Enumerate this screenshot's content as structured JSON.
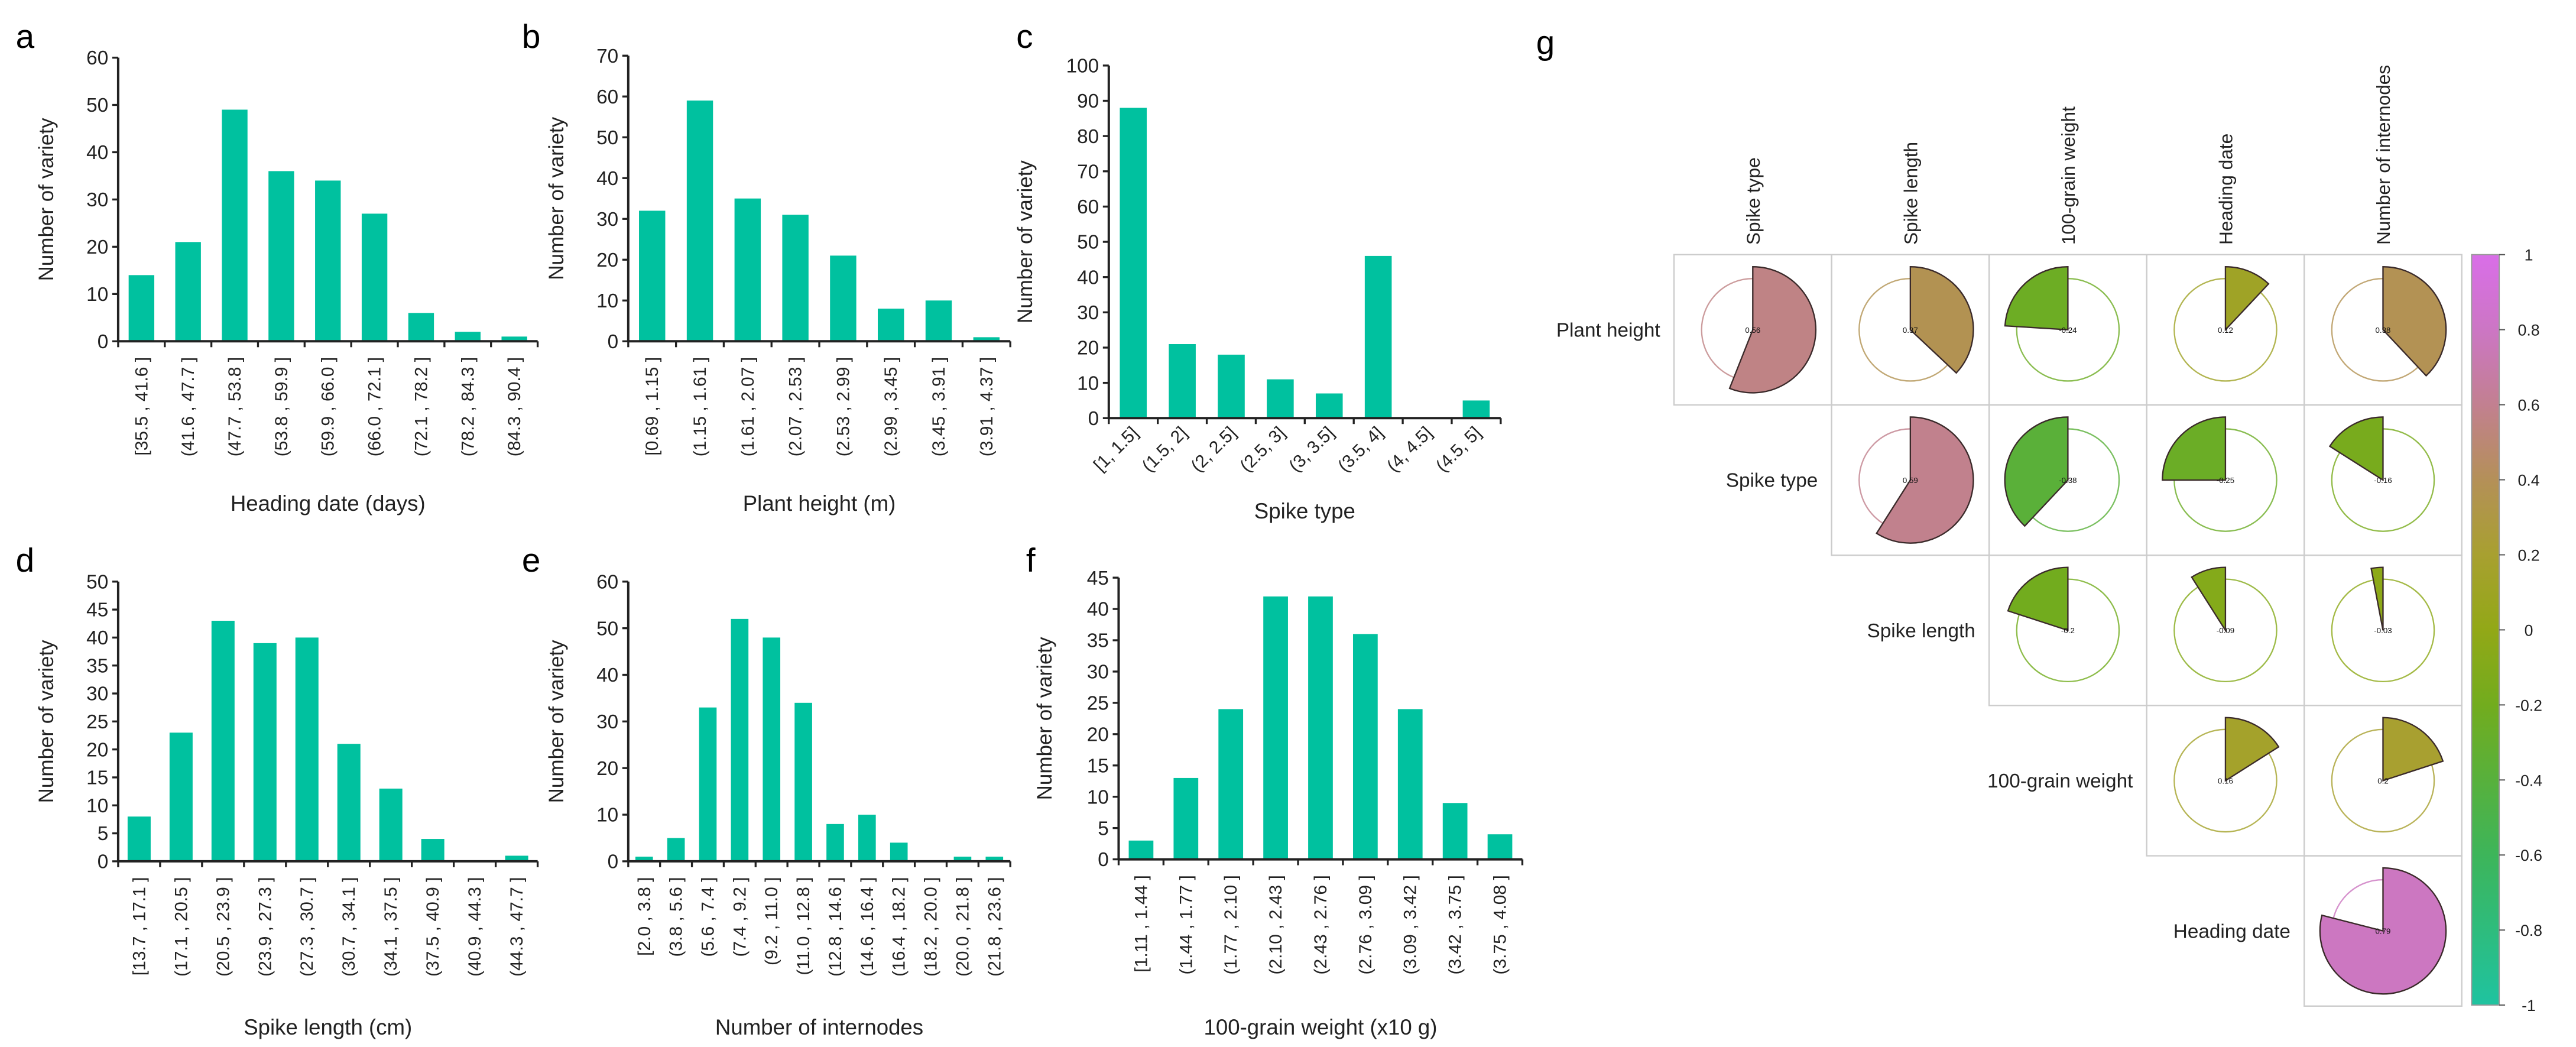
{
  "colors": {
    "bar": "#00C19F",
    "axis": "#222222",
    "grid_border": "#cccccc"
  },
  "chart_data": [
    {
      "panel": "a",
      "type": "bar",
      "xlabel": "Heading date (days)",
      "ylabel": "Number of variety",
      "ylim": [
        0,
        60
      ],
      "yticks": [
        0,
        10,
        20,
        30,
        40,
        50,
        60
      ],
      "categories": [
        "[35.5 , 41.6 ]",
        "(41.6 , 47.7 ]",
        "(47.7 , 53.8 ]",
        "(53.8 , 59.9 ]",
        "(59.9 , 66.0 ]",
        "(66.0 , 72.1 ]",
        "(72.1 , 78.2 ]",
        "(78.2 , 84.3 ]",
        "(84.3 , 90.4 ]"
      ],
      "values": [
        14,
        21,
        49,
        36,
        34,
        27,
        6,
        2,
        1
      ]
    },
    {
      "panel": "b",
      "type": "bar",
      "xlabel": "Plant height (m)",
      "ylabel": "Number of variety",
      "ylim": [
        0,
        70
      ],
      "yticks": [
        0,
        10,
        20,
        30,
        40,
        50,
        60,
        70
      ],
      "categories": [
        "[0.69 , 1.15 ]",
        "(1.15 , 1.61 ]",
        "(1.61 , 2.07 ]",
        "(2.07 , 2.53 ]",
        "(2.53 , 2.99 ]",
        "(2.99 , 3.45 ]",
        "(3.45 , 3.91 ]",
        "(3.91 , 4.37 ]"
      ],
      "values": [
        32,
        59,
        35,
        31,
        21,
        8,
        10,
        1
      ]
    },
    {
      "panel": "c",
      "type": "bar",
      "xlabel": "Spike type",
      "ylabel": "Number of variety",
      "ylim": [
        0,
        100
      ],
      "yticks": [
        0,
        10,
        20,
        30,
        40,
        50,
        60,
        70,
        80,
        90,
        100
      ],
      "categories": [
        "[1, 1.5]",
        "(1.5, 2]",
        "(2, 2.5]",
        "(2.5, 3]",
        "(3, 3.5]",
        "(3.5, 4]",
        "(4, 4.5]",
        "(4.5, 5]"
      ],
      "values": [
        88,
        21,
        18,
        11,
        7,
        46,
        0,
        5
      ]
    },
    {
      "panel": "d",
      "type": "bar",
      "xlabel": "Spike length (cm)",
      "ylabel": "Number of variety",
      "ylim": [
        0,
        50
      ],
      "yticks": [
        0,
        5,
        10,
        15,
        20,
        25,
        30,
        35,
        40,
        45,
        50
      ],
      "categories": [
        "[13.7 , 17.1 ]",
        "(17.1 , 20.5 ]",
        "(20.5 , 23.9 ]",
        "(23.9 , 27.3 ]",
        "(27.3 , 30.7 ]",
        "(30.7 , 34.1 ]",
        "(34.1 , 37.5 ]",
        "(37.5 , 40.9 ]",
        "(40.9 , 44.3 ]",
        "(44.3 , 47.7 ]"
      ],
      "values": [
        8,
        23,
        43,
        39,
        40,
        21,
        13,
        4,
        0,
        1
      ]
    },
    {
      "panel": "e",
      "type": "bar",
      "xlabel": "Number of internodes",
      "ylabel": "Number of variety",
      "ylim": [
        0,
        60
      ],
      "yticks": [
        0,
        10,
        20,
        30,
        40,
        50,
        60
      ],
      "categories": [
        "[2.0 , 3.8 ]",
        "(3.8 , 5.6 ]",
        "(5.6 , 7.4 ]",
        "(7.4 , 9.2 ]",
        "(9.2 , 11.0 ]",
        "(11.0 , 12.8 ]",
        "(12.8 , 14.6 ]",
        "(14.6 , 16.4 ]",
        "(16.4 , 18.2 ]",
        "(18.2 , 20.0 ]",
        "(20.0 , 21.8 ]",
        "(21.8 , 23.6 ]"
      ],
      "values": [
        1,
        5,
        33,
        52,
        48,
        34,
        8,
        10,
        4,
        0,
        1,
        1
      ]
    },
    {
      "panel": "f",
      "type": "bar",
      "xlabel": "100-grain weight (x10 g)",
      "ylabel": "Number of variety",
      "ylim": [
        0,
        45
      ],
      "yticks": [
        0,
        5,
        10,
        15,
        20,
        25,
        30,
        35,
        40,
        45
      ],
      "categories": [
        "[1.11 , 1.44 ]",
        "(1.44 , 1.77 ]",
        "(1.77 , 2.10 ]",
        "(2.10 , 2.43 ]",
        "(2.43 , 2.76 ]",
        "(2.76 , 3.09 ]",
        "(3.09 , 3.42 ]",
        "(3.42 , 3.75 ]",
        "(3.75 , 4.08 ]"
      ],
      "values": [
        3,
        13,
        24,
        42,
        42,
        36,
        24,
        9,
        4
      ]
    },
    {
      "panel": "g",
      "type": "heatmap",
      "title": "",
      "row_labels": [
        "Plant height",
        "Spike type",
        "Spike length",
        "100-grain weight",
        "Heading date"
      ],
      "col_labels": [
        "Spike type",
        "Spike length",
        "100-grain weight",
        "Heading date",
        "Number of internodes"
      ],
      "values": [
        [
          0.56,
          0.37,
          -0.24,
          0.12,
          0.38
        ],
        [
          null,
          0.59,
          -0.38,
          -0.25,
          -0.16
        ],
        [
          null,
          null,
          -0.2,
          -0.09,
          -0.03
        ],
        [
          null,
          null,
          null,
          0.16,
          0.2
        ],
        [
          null,
          null,
          null,
          null,
          0.79
        ]
      ],
      "colorbar": {
        "range": [
          -1,
          1
        ],
        "ticks": [
          "1",
          "0.8",
          "0.6",
          "0.4",
          "0.2",
          "0",
          "-0.2",
          "-0.4",
          "-0.6",
          "-0.8",
          "-1"
        ],
        "stops": [
          [
            -1,
            "#1fc3a0"
          ],
          [
            -0.6,
            "#3db55a"
          ],
          [
            -0.2,
            "#72ac1e"
          ],
          [
            0,
            "#92a817"
          ],
          [
            0.2,
            "#a8a030"
          ],
          [
            0.4,
            "#b49058"
          ],
          [
            0.6,
            "#c28090"
          ],
          [
            0.8,
            "#cc76c4"
          ],
          [
            1,
            "#d96ee8"
          ]
        ]
      }
    }
  ]
}
